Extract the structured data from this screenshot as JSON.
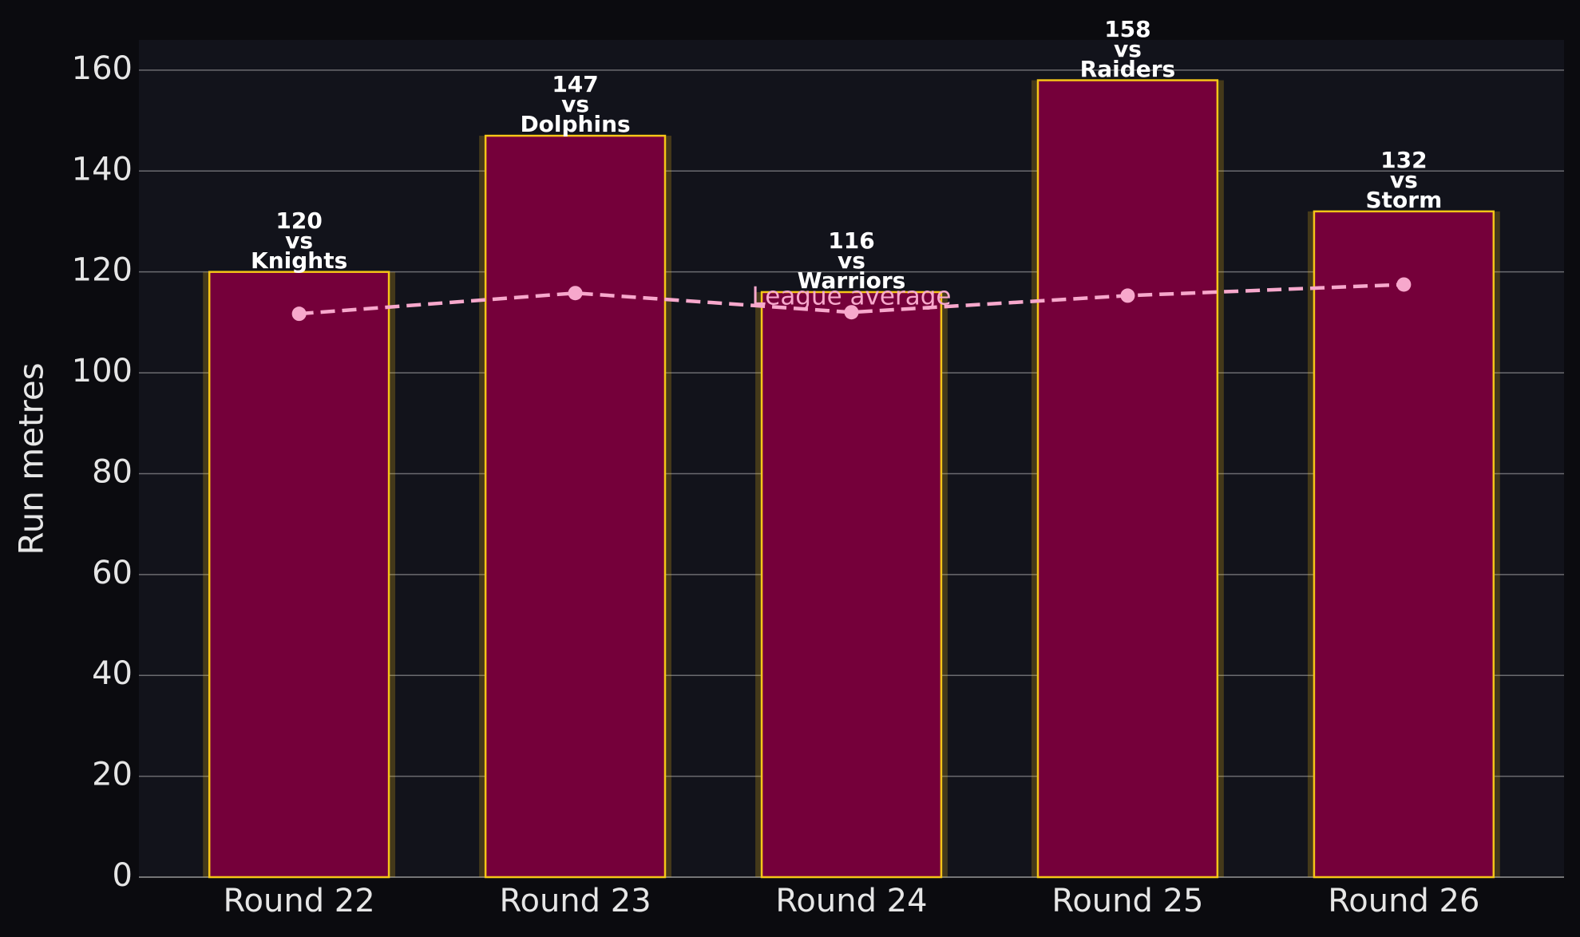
{
  "chart_data": {
    "type": "bar",
    "y_label": "Run metres",
    "categories": [
      "Round 22",
      "Round 23",
      "Round 24",
      "Round 25",
      "Round 26"
    ],
    "values": [
      120,
      147,
      116,
      158,
      132
    ],
    "value_labels": [
      "120\nvs\nKnights",
      "147\nvs\nDolphins",
      "116\nvs\nWarriors",
      "158\nvs\nRaiders",
      "132\nvs\nStorm"
    ],
    "color": "#75003a",
    "edge_color": "#f5c518",
    "line": {
      "name": "League average",
      "color": "#f7a8cc",
      "values": [
        111.7,
        115.8,
        112,
        115.3,
        117.5
      ]
    },
    "ylim": [
      0,
      166
    ],
    "yticks": [
      0,
      20,
      40,
      60,
      80,
      100,
      120,
      140,
      160
    ],
    "grid": true
  }
}
